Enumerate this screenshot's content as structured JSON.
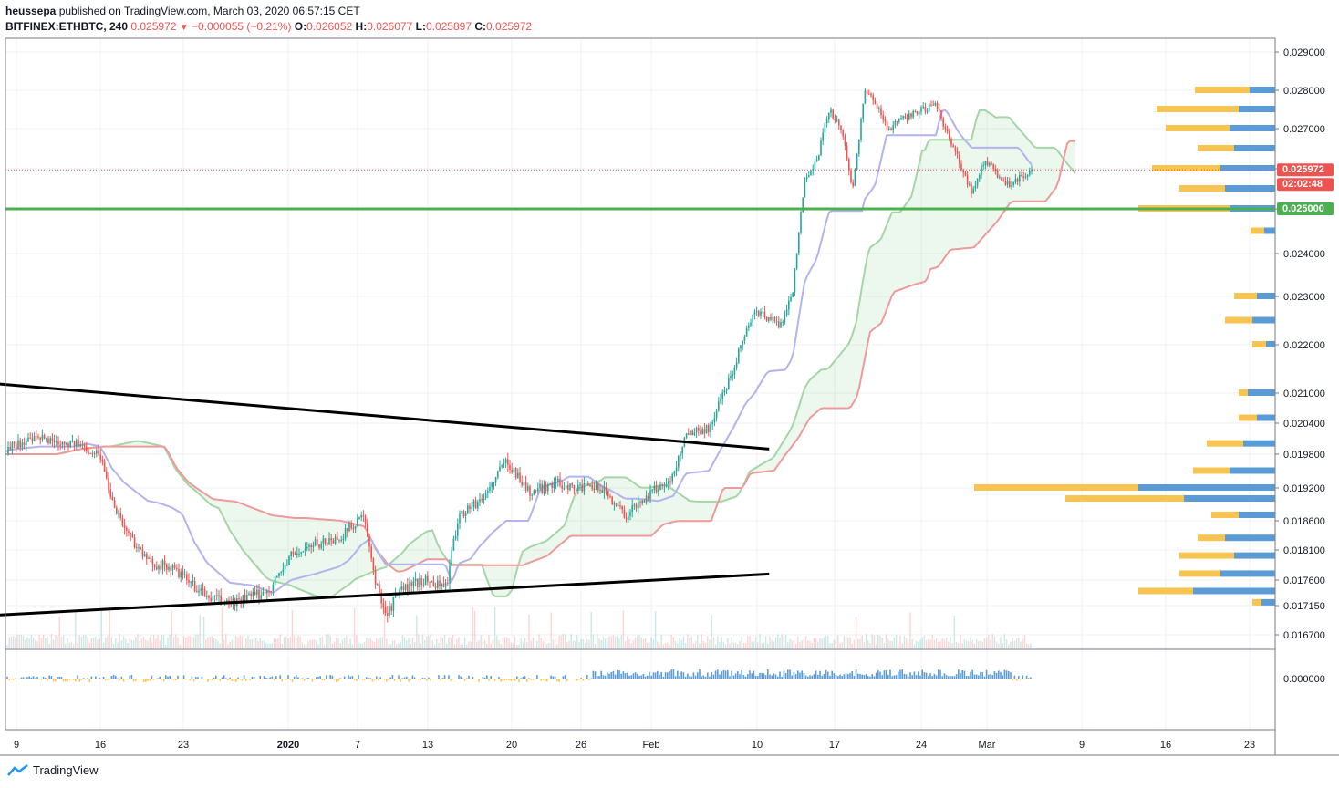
{
  "header": {
    "publisher": "heussepa",
    "published_text": "published on TradingView.com, March 03, 2020 06:57:15 CET",
    "symbol": "BITFINEX:ETHBTC, 240",
    "last": "0.025972",
    "change": "−0.000055 (−0.21%)",
    "o_label": "O:",
    "o_val": "0.026052",
    "h_label": "H:",
    "h_val": "0.026077",
    "l_label": "L:",
    "l_val": "0.025897",
    "c_label": "C:",
    "c_val": "0.025972"
  },
  "footer": {
    "brand": "TradingView"
  },
  "colors": {
    "up": "#26a69a",
    "down": "#ef5350",
    "support_line": "#4caf50",
    "trendline": "#000000",
    "vp_up": "#5b9cd6",
    "vp_down": "#f7c451"
  },
  "chart_data": {
    "type": "candlestick",
    "symbol": "BITFINEX:ETHBTC",
    "interval": "240",
    "y_axis_ticks": [
      "0.029000",
      "0.028000",
      "0.027000",
      "0.026000",
      "0.025000",
      "0.024000",
      "0.023000",
      "0.022000",
      "0.021000",
      "0.020400",
      "0.019800",
      "0.019200",
      "0.018600",
      "0.018100",
      "0.017600",
      "0.017150",
      "0.016700"
    ],
    "price_labels": {
      "last": "0.025972",
      "countdown": "02:02:48",
      "support": "0.025000"
    },
    "osc_tick": "0.000000",
    "x_axis_labels": [
      "9",
      "16",
      "23",
      "2020",
      "7",
      "13",
      "20",
      "26",
      "Feb",
      "10",
      "17",
      "24",
      "Mar",
      "9",
      "16",
      "23"
    ],
    "support_level": 0.025,
    "price_path": [
      [
        "2019-12-07",
        0.0198
      ],
      [
        "2019-12-09",
        0.02
      ],
      [
        "2019-12-11",
        0.0201
      ],
      [
        "2019-12-14",
        0.02
      ],
      [
        "2019-12-16",
        0.0198
      ],
      [
        "2019-12-17",
        0.019
      ],
      [
        "2019-12-18",
        0.0185
      ],
      [
        "2019-12-20",
        0.0179
      ],
      [
        "2019-12-22",
        0.0178
      ],
      [
        "2019-12-25",
        0.0173
      ],
      [
        "2019-12-27",
        0.0172
      ],
      [
        "2019-12-30",
        0.0174
      ],
      [
        "2020-01-01",
        0.018
      ],
      [
        "2020-01-03",
        0.0182
      ],
      [
        "2020-01-05",
        0.0183
      ],
      [
        "2020-01-07",
        0.0187
      ],
      [
        "2020-01-08",
        0.0176
      ],
      [
        "2020-01-09",
        0.017
      ],
      [
        "2020-01-10",
        0.0174
      ],
      [
        "2020-01-12",
        0.0176
      ],
      [
        "2020-01-14",
        0.0175
      ],
      [
        "2020-01-15",
        0.0187
      ],
      [
        "2020-01-17",
        0.019
      ],
      [
        "2020-01-19",
        0.0197
      ],
      [
        "2020-01-21",
        0.0191
      ],
      [
        "2020-01-23",
        0.0193
      ],
      [
        "2020-01-25",
        0.0192
      ],
      [
        "2020-01-27",
        0.0192
      ],
      [
        "2020-01-29",
        0.0187
      ],
      [
        "2020-01-31",
        0.0191
      ],
      [
        "2020-02-02",
        0.0194
      ],
      [
        "2020-02-03",
        0.0202
      ],
      [
        "2020-02-05",
        0.0203
      ],
      [
        "2020-02-07",
        0.0215
      ],
      [
        "2020-02-08",
        0.0223
      ],
      [
        "2020-02-09",
        0.0227
      ],
      [
        "2020-02-11",
        0.0224
      ],
      [
        "2020-02-12",
        0.0232
      ],
      [
        "2020-02-13",
        0.0258
      ],
      [
        "2020-02-14",
        0.0262
      ],
      [
        "2020-02-15",
        0.0275
      ],
      [
        "2020-02-16",
        0.027
      ],
      [
        "2020-02-17",
        0.0255
      ],
      [
        "2020-02-18",
        0.028
      ],
      [
        "2020-02-19",
        0.0276
      ],
      [
        "2020-02-20",
        0.027
      ],
      [
        "2020-02-22",
        0.0274
      ],
      [
        "2020-02-24",
        0.0276
      ],
      [
        "2020-02-25",
        0.0268
      ],
      [
        "2020-02-27",
        0.0254
      ],
      [
        "2020-02-28",
        0.0262
      ],
      [
        "2020-03-01",
        0.0256
      ],
      [
        "2020-03-02",
        0.0258
      ],
      [
        "2020-03-03",
        0.025972
      ]
    ],
    "trendline_upper": [
      [
        "2019-12-07",
        0.0212
      ],
      [
        "2020-02-10",
        0.0199
      ]
    ],
    "trendline_lower": [
      [
        "2019-12-07",
        0.017
      ],
      [
        "2020-02-10",
        0.0177
      ]
    ],
    "volume_profile": [
      {
        "price": 0.028,
        "up": 28,
        "down": 60
      },
      {
        "price": 0.0275,
        "up": 40,
        "down": 90
      },
      {
        "price": 0.027,
        "up": 50,
        "down": 70
      },
      {
        "price": 0.0265,
        "up": 45,
        "down": 40
      },
      {
        "price": 0.026,
        "up": 60,
        "down": 75
      },
      {
        "price": 0.0255,
        "up": 55,
        "down": 50
      },
      {
        "price": 0.025,
        "up": 50,
        "down": 100
      },
      {
        "price": 0.0245,
        "up": 12,
        "down": 15
      },
      {
        "price": 0.023,
        "up": 20,
        "down": 25
      },
      {
        "price": 0.0225,
        "up": 25,
        "down": 30
      },
      {
        "price": 0.022,
        "up": 10,
        "down": 15
      },
      {
        "price": 0.021,
        "up": 30,
        "down": 10
      },
      {
        "price": 0.0205,
        "up": 20,
        "down": 20
      },
      {
        "price": 0.02,
        "up": 35,
        "down": 40
      },
      {
        "price": 0.0195,
        "up": 50,
        "down": 40
      },
      {
        "price": 0.0192,
        "up": 150,
        "down": 180
      },
      {
        "price": 0.019,
        "up": 100,
        "down": 130
      },
      {
        "price": 0.0187,
        "up": 40,
        "down": 30
      },
      {
        "price": 0.0183,
        "up": 55,
        "down": 30
      },
      {
        "price": 0.018,
        "up": 45,
        "down": 60
      },
      {
        "price": 0.0177,
        "up": 60,
        "down": 45
      },
      {
        "price": 0.0174,
        "up": 90,
        "down": 60
      },
      {
        "price": 0.0172,
        "up": 15,
        "down": 10
      }
    ]
  }
}
